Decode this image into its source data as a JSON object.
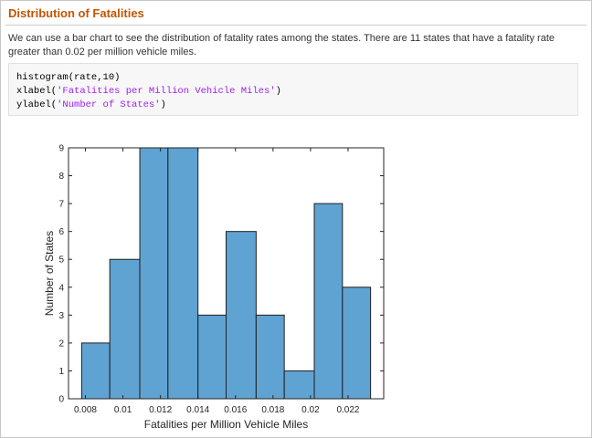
{
  "section": {
    "title": "Distribution of Fatalities",
    "paragraph": "We can use a bar chart to see the distribution of fatality rates among the states. There are 11 states that have a fatality rate greater than 0.02 per million vehicle miles."
  },
  "code": {
    "lines": [
      {
        "fn": "histogram(rate,10)",
        "prefix": "",
        "str": "",
        "suffix": ""
      },
      {
        "fn": "",
        "prefix": "xlabel(",
        "str": "'Fatalities per Million Vehicle Miles'",
        "suffix": ")"
      },
      {
        "fn": "",
        "prefix": "ylabel(",
        "str": "'Number of States'",
        "suffix": ")"
      }
    ]
  },
  "colors": {
    "title": "#c45400",
    "bar_fill": "#5fa3d3",
    "bar_stroke": "#1f1f1f",
    "code_string": "#a020f0"
  },
  "chart_data": {
    "type": "bar",
    "xlabel": "Fatalities per Million Vehicle Miles",
    "ylabel": "Number of States",
    "bin_edges": [
      0.0078,
      0.0093,
      0.0109,
      0.0124,
      0.014,
      0.0155,
      0.0171,
      0.0186,
      0.0202,
      0.0217,
      0.0232
    ],
    "values": [
      2,
      5,
      9,
      9,
      3,
      6,
      3,
      1,
      7,
      4
    ],
    "xlim": [
      0.0071,
      0.0239
    ],
    "ylim": [
      0,
      9
    ],
    "xticks": [
      0.008,
      0.01,
      0.012,
      0.014,
      0.016,
      0.018,
      0.02,
      0.022
    ],
    "xtick_labels": [
      "0.008",
      "0.01",
      "0.012",
      "0.014",
      "0.016",
      "0.018",
      "0.02",
      "0.022"
    ],
    "yticks": [
      0,
      1,
      2,
      3,
      4,
      5,
      6,
      7,
      8,
      9
    ],
    "ytick_labels": [
      "0",
      "1",
      "2",
      "3",
      "4",
      "5",
      "6",
      "7",
      "8",
      "9"
    ],
    "grid": false
  }
}
